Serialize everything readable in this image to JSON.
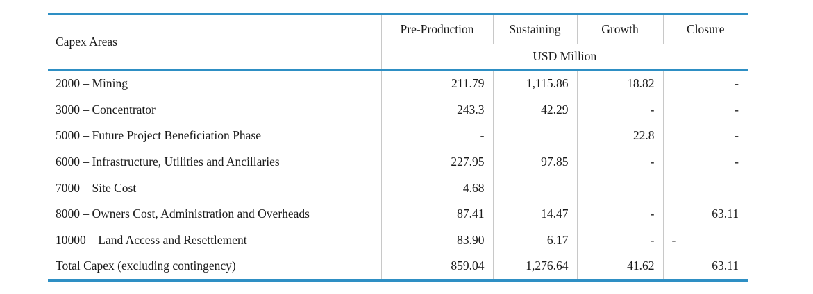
{
  "table": {
    "headers": {
      "area": "Capex Areas",
      "pre_production": "Pre-Production",
      "sustaining": "Sustaining",
      "growth": "Growth",
      "closure": "Closure",
      "unit": "USD Million"
    },
    "rows": [
      {
        "area": "2000 – Mining",
        "pre_production": "211.79",
        "sustaining": "1,115.86",
        "growth": "18.82",
        "closure": "-"
      },
      {
        "area": "3000 – Concentrator",
        "pre_production": "243.3",
        "sustaining": "42.29",
        "growth": "-",
        "closure": "-"
      },
      {
        "area": "5000 – Future Project Beneficiation Phase",
        "pre_production": "-",
        "sustaining": "",
        "growth": "22.8",
        "closure": "-"
      },
      {
        "area": "6000 – Infrastructure, Utilities and Ancillaries",
        "pre_production": "227.95",
        "sustaining": "97.85",
        "growth": "-",
        "closure": "-"
      },
      {
        "area": "7000 – Site Cost",
        "pre_production": "4.68",
        "sustaining": "",
        "growth": "",
        "closure": ""
      },
      {
        "area": "8000 – Owners Cost, Administration and Overheads",
        "pre_production": "87.41",
        "sustaining": "14.47",
        "growth": "-",
        "closure": "63.11"
      },
      {
        "area": "10000 – Land Access and Resettlement",
        "pre_production": "83.90",
        "sustaining": "6.17",
        "growth": "-",
        "closure_left": "-",
        "closure": ""
      },
      {
        "area": "Total Capex (excluding contingency)",
        "pre_production": "859.04",
        "sustaining": "1,276.64",
        "growth": "41.62",
        "closure": "63.11"
      }
    ]
  },
  "colors": {
    "rule": "#2e8fc4",
    "separator": "#c8c8c8"
  }
}
